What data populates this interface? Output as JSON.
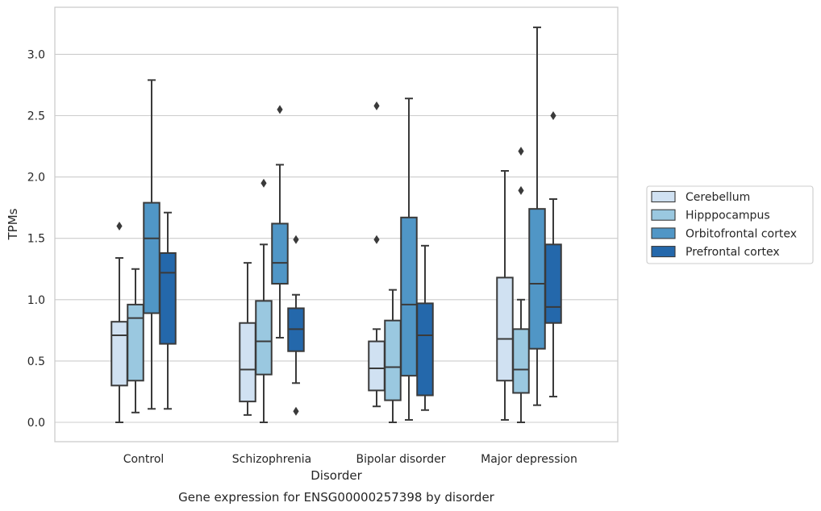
{
  "chart_data": {
    "type": "box",
    "xlabel": "Disorder",
    "ylabel": "TPMs",
    "caption": "Gene expression for ENSG00000257398 by disorder",
    "ylim": [
      -0.15,
      3.38
    ],
    "yticks": [
      "0.0",
      "0.5",
      "1.0",
      "1.5",
      "2.0",
      "2.5",
      "3.0"
    ],
    "grid": "horizontal",
    "legend_position": "right",
    "categories": [
      "Control",
      "Schizophrenia",
      "Bipolar disorder",
      "Major depression"
    ],
    "series": [
      {
        "name": "Cerebellum",
        "color": "#d0e1f2",
        "boxes": [
          {
            "whislo": 0.0,
            "q1": 0.3,
            "med": 0.71,
            "q3": 0.82,
            "whishi": 1.34,
            "fliers": [
              1.6
            ]
          },
          {
            "whislo": 0.06,
            "q1": 0.17,
            "med": 0.43,
            "q3": 0.81,
            "whishi": 1.3,
            "fliers": []
          },
          {
            "whislo": 0.13,
            "q1": 0.26,
            "med": 0.44,
            "q3": 0.66,
            "whishi": 0.76,
            "fliers": [
              1.49,
              2.58
            ]
          },
          {
            "whislo": 0.02,
            "q1": 0.34,
            "med": 0.68,
            "q3": 1.18,
            "whishi": 2.05,
            "fliers": []
          }
        ]
      },
      {
        "name": "Hipppocampus",
        "color": "#9ac8e0",
        "boxes": [
          {
            "whislo": 0.08,
            "q1": 0.34,
            "med": 0.85,
            "q3": 0.96,
            "whishi": 1.25,
            "fliers": []
          },
          {
            "whislo": 0.0,
            "q1": 0.39,
            "med": 0.66,
            "q3": 0.99,
            "whishi": 1.45,
            "fliers": [
              1.95
            ]
          },
          {
            "whislo": 0.0,
            "q1": 0.18,
            "med": 0.45,
            "q3": 0.83,
            "whishi": 1.08,
            "fliers": []
          },
          {
            "whislo": 0.0,
            "q1": 0.24,
            "med": 0.43,
            "q3": 0.76,
            "whishi": 1.0,
            "fliers": [
              1.89,
              2.21
            ]
          }
        ]
      },
      {
        "name": "Orbitofrontal cortex",
        "color": "#5096c6",
        "boxes": [
          {
            "whislo": 0.11,
            "q1": 0.89,
            "med": 1.5,
            "q3": 1.79,
            "whishi": 2.79,
            "fliers": []
          },
          {
            "whislo": 0.69,
            "q1": 1.13,
            "med": 1.3,
            "q3": 1.62,
            "whishi": 2.1,
            "fliers": [
              2.55
            ]
          },
          {
            "whislo": 0.02,
            "q1": 0.38,
            "med": 0.96,
            "q3": 1.67,
            "whishi": 2.64,
            "fliers": []
          },
          {
            "whislo": 0.14,
            "q1": 0.6,
            "med": 1.13,
            "q3": 1.74,
            "whishi": 3.22,
            "fliers": []
          }
        ]
      },
      {
        "name": "Prefrontal cortex",
        "color": "#2468ab",
        "boxes": [
          {
            "whislo": 0.11,
            "q1": 0.64,
            "med": 1.22,
            "q3": 1.38,
            "whishi": 1.71,
            "fliers": []
          },
          {
            "whislo": 0.32,
            "q1": 0.58,
            "med": 0.76,
            "q3": 0.93,
            "whishi": 1.04,
            "fliers": [
              0.09,
              1.49
            ]
          },
          {
            "whislo": 0.1,
            "q1": 0.22,
            "med": 0.71,
            "q3": 0.97,
            "whishi": 1.44,
            "fliers": []
          },
          {
            "whislo": 0.21,
            "q1": 0.81,
            "med": 0.94,
            "q3": 1.45,
            "whishi": 1.82,
            "fliers": [
              2.5
            ]
          }
        ]
      }
    ]
  }
}
